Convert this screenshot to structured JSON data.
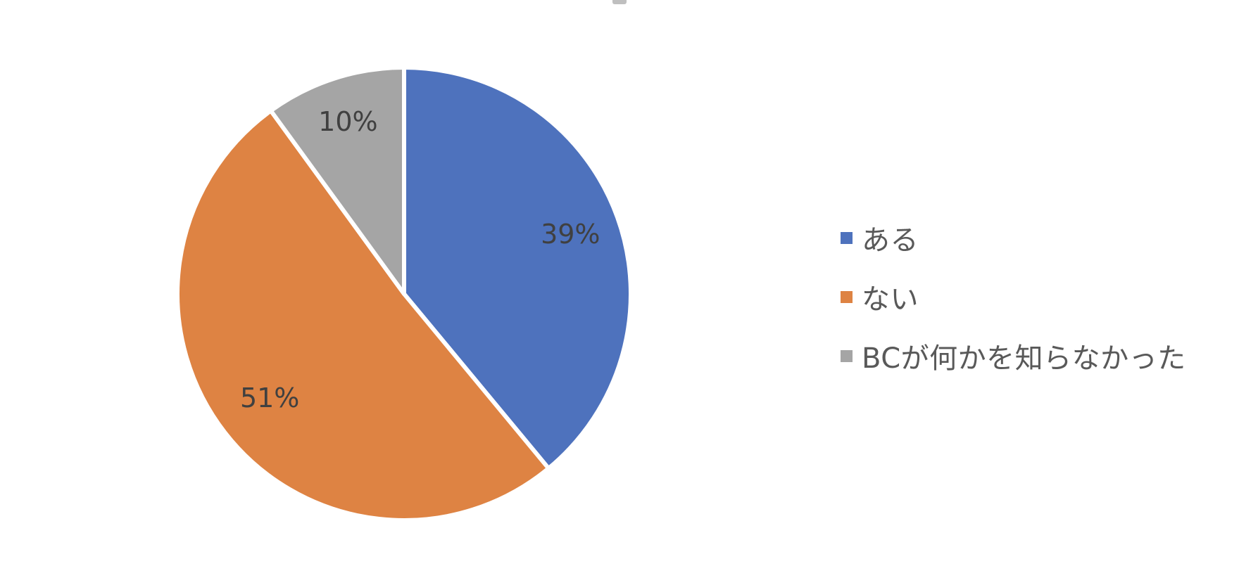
{
  "chart_data": {
    "type": "pie",
    "title": "",
    "slices": [
      {
        "label": "ある",
        "value": 39,
        "display": "39%",
        "color": "#4e72bd"
      },
      {
        "label": "ない",
        "value": 51,
        "display": "51%",
        "color": "#de8343"
      },
      {
        "label": "BCが何かを知らなかった",
        "value": 10,
        "display": "10%",
        "color": "#a5a5a5"
      }
    ],
    "legend_position": "right",
    "start_angle": "12 o'clock",
    "direction": "clockwise"
  }
}
